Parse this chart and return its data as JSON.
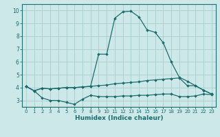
{
  "xlabel": "Humidex (Indice chaleur)",
  "background_color": "#cde8e8",
  "grid_color": "#aacccc",
  "line_color": "#1a6b6b",
  "xlim": [
    -0.5,
    23.5
  ],
  "ylim": [
    2.5,
    10.5
  ],
  "xticks": [
    0,
    1,
    2,
    3,
    4,
    5,
    6,
    7,
    8,
    9,
    10,
    11,
    12,
    13,
    14,
    15,
    16,
    17,
    18,
    19,
    20,
    21,
    22,
    23
  ],
  "yticks": [
    3,
    4,
    5,
    6,
    7,
    8,
    9,
    10
  ],
  "series": [
    {
      "x": [
        0,
        1,
        2,
        3,
        4,
        5,
        6,
        7,
        8,
        9,
        10,
        11,
        12,
        13,
        14,
        15,
        16,
        17,
        18,
        19,
        20,
        21,
        22,
        23
      ],
      "y": [
        4.1,
        3.75,
        3.95,
        3.9,
        3.95,
        4.0,
        4.0,
        4.05,
        4.1,
        6.6,
        6.6,
        9.4,
        9.9,
        9.95,
        9.5,
        8.5,
        8.3,
        7.5,
        6.0,
        4.8,
        4.5,
        4.15,
        3.8,
        3.5
      ]
    },
    {
      "x": [
        0,
        1,
        2,
        3,
        4,
        5,
        6,
        7,
        8,
        9,
        10,
        11,
        12,
        13,
        14,
        15,
        16,
        17,
        18,
        19,
        20,
        21,
        22,
        23
      ],
      "y": [
        4.1,
        3.75,
        3.95,
        3.9,
        3.95,
        4.0,
        4.0,
        4.05,
        4.1,
        4.15,
        4.2,
        4.3,
        4.35,
        4.4,
        4.45,
        4.55,
        4.6,
        4.65,
        4.7,
        4.75,
        4.15,
        4.15,
        3.8,
        3.5
      ]
    },
    {
      "x": [
        0,
        1,
        2,
        3,
        4,
        5,
        6,
        7,
        8,
        9,
        10,
        11,
        12,
        13,
        14,
        15,
        16,
        17,
        18,
        19,
        20,
        21,
        22,
        23
      ],
      "y": [
        4.1,
        3.75,
        3.2,
        3.0,
        3.0,
        2.85,
        2.7,
        3.1,
        3.4,
        3.3,
        3.3,
        3.3,
        3.35,
        3.35,
        3.4,
        3.4,
        3.45,
        3.5,
        3.5,
        3.3,
        3.3,
        3.35,
        3.5,
        3.45
      ]
    }
  ]
}
